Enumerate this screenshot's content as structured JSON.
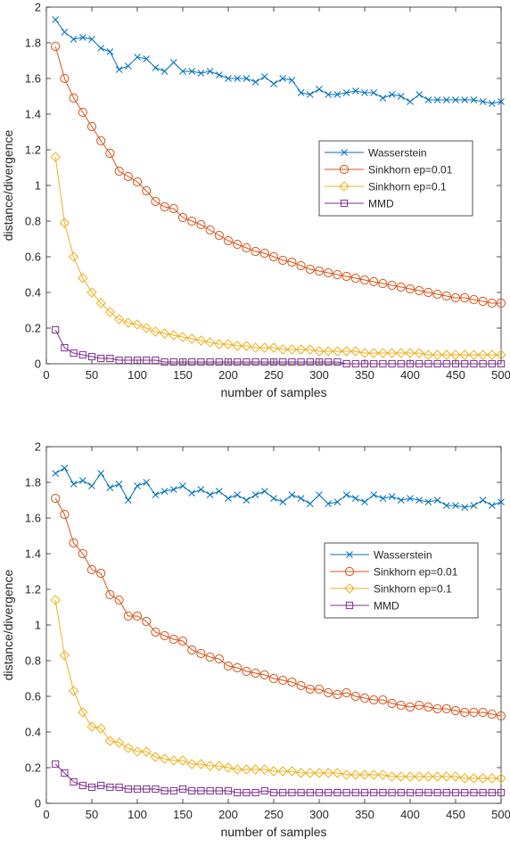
{
  "chart_data": [
    {
      "type": "line",
      "title": "",
      "xlabel": "number of samples",
      "ylabel": "distance/divergence",
      "xlim": [
        0,
        500
      ],
      "ylim": [
        0,
        2
      ],
      "xticks": [
        "0",
        "50",
        "100",
        "150",
        "200",
        "250",
        "300",
        "350",
        "400",
        "450",
        "500"
      ],
      "yticks": [
        "0",
        "0.2",
        "0.4",
        "0.6",
        "0.8",
        "1",
        "1.2",
        "1.4",
        "1.6",
        "1.8",
        "2"
      ],
      "legend_position": "right",
      "x": [
        10,
        20,
        30,
        40,
        50,
        60,
        70,
        80,
        90,
        100,
        110,
        120,
        130,
        140,
        150,
        160,
        170,
        180,
        190,
        200,
        210,
        220,
        230,
        240,
        250,
        260,
        270,
        280,
        290,
        300,
        310,
        320,
        330,
        340,
        350,
        360,
        370,
        380,
        390,
        400,
        410,
        420,
        430,
        440,
        450,
        460,
        470,
        480,
        490,
        500
      ],
      "series": [
        {
          "name": "Wasserstein",
          "color": "#0072BD",
          "marker": "x",
          "values": [
            1.93,
            1.86,
            1.82,
            1.83,
            1.82,
            1.77,
            1.75,
            1.65,
            1.67,
            1.72,
            1.71,
            1.66,
            1.64,
            1.69,
            1.64,
            1.64,
            1.63,
            1.64,
            1.62,
            1.6,
            1.6,
            1.6,
            1.58,
            1.61,
            1.57,
            1.6,
            1.59,
            1.52,
            1.51,
            1.54,
            1.51,
            1.51,
            1.52,
            1.53,
            1.52,
            1.52,
            1.49,
            1.51,
            1.5,
            1.47,
            1.51,
            1.48,
            1.48,
            1.48,
            1.48,
            1.48,
            1.48,
            1.47,
            1.46,
            1.47
          ]
        },
        {
          "name": "Sinkhorn ep=0.01",
          "color": "#D95319",
          "marker": "o",
          "values": [
            1.78,
            1.6,
            1.49,
            1.41,
            1.33,
            1.25,
            1.18,
            1.08,
            1.05,
            1.02,
            0.97,
            0.91,
            0.88,
            0.87,
            0.82,
            0.8,
            0.78,
            0.75,
            0.72,
            0.69,
            0.67,
            0.65,
            0.63,
            0.62,
            0.6,
            0.58,
            0.57,
            0.55,
            0.53,
            0.52,
            0.51,
            0.5,
            0.49,
            0.48,
            0.47,
            0.46,
            0.45,
            0.44,
            0.43,
            0.42,
            0.41,
            0.4,
            0.39,
            0.38,
            0.37,
            0.37,
            0.36,
            0.35,
            0.34,
            0.34
          ]
        },
        {
          "name": "Sinkhorn ep=0.1",
          "color": "#EDB120",
          "marker": "diamond",
          "values": [
            1.16,
            0.79,
            0.6,
            0.48,
            0.4,
            0.34,
            0.29,
            0.25,
            0.23,
            0.22,
            0.2,
            0.18,
            0.17,
            0.16,
            0.15,
            0.14,
            0.13,
            0.12,
            0.11,
            0.11,
            0.1,
            0.1,
            0.09,
            0.09,
            0.09,
            0.08,
            0.08,
            0.08,
            0.08,
            0.07,
            0.07,
            0.07,
            0.07,
            0.07,
            0.06,
            0.06,
            0.06,
            0.06,
            0.06,
            0.06,
            0.06,
            0.05,
            0.05,
            0.05,
            0.05,
            0.05,
            0.05,
            0.05,
            0.05,
            0.05
          ]
        },
        {
          "name": "MMD",
          "color": "#7E2F8E",
          "marker": "square",
          "values": [
            0.19,
            0.09,
            0.06,
            0.05,
            0.04,
            0.03,
            0.03,
            0.02,
            0.02,
            0.02,
            0.02,
            0.02,
            0.01,
            0.01,
            0.01,
            0.01,
            0.01,
            0.01,
            0.01,
            0.01,
            0.01,
            0.01,
            0.01,
            0.01,
            0.01,
            0.01,
            0.01,
            0.01,
            0.01,
            0.01,
            0.01,
            0.01,
            0.0,
            0.0,
            0.0,
            0.0,
            0.0,
            0.0,
            0.0,
            0.0,
            0.0,
            0.0,
            0.0,
            0.0,
            0.0,
            0.0,
            0.0,
            0.0,
            0.0,
            0.0
          ]
        }
      ]
    },
    {
      "type": "line",
      "title": "",
      "xlabel": "number of samples",
      "ylabel": "distance/divergence",
      "xlim": [
        0,
        500
      ],
      "ylim": [
        0,
        2
      ],
      "xticks": [
        "0",
        "50",
        "100",
        "150",
        "200",
        "250",
        "300",
        "350",
        "400",
        "450",
        "500"
      ],
      "yticks": [
        "0",
        "0.2",
        "0.4",
        "0.6",
        "0.8",
        "1",
        "1.2",
        "1.4",
        "1.6",
        "1.8",
        "2"
      ],
      "legend_position": "right",
      "x": [
        10,
        20,
        30,
        40,
        50,
        60,
        70,
        80,
        90,
        100,
        110,
        120,
        130,
        140,
        150,
        160,
        170,
        180,
        190,
        200,
        210,
        220,
        230,
        240,
        250,
        260,
        270,
        280,
        290,
        300,
        310,
        320,
        330,
        340,
        350,
        360,
        370,
        380,
        390,
        400,
        410,
        420,
        430,
        440,
        450,
        460,
        470,
        480,
        490,
        500
      ],
      "series": [
        {
          "name": "Wasserstein",
          "color": "#0072BD",
          "marker": "x",
          "values": [
            1.85,
            1.88,
            1.79,
            1.81,
            1.78,
            1.85,
            1.77,
            1.79,
            1.7,
            1.78,
            1.8,
            1.73,
            1.75,
            1.76,
            1.78,
            1.74,
            1.76,
            1.73,
            1.75,
            1.71,
            1.73,
            1.7,
            1.73,
            1.75,
            1.71,
            1.69,
            1.73,
            1.71,
            1.68,
            1.73,
            1.68,
            1.69,
            1.73,
            1.71,
            1.69,
            1.73,
            1.71,
            1.72,
            1.7,
            1.71,
            1.7,
            1.69,
            1.7,
            1.67,
            1.67,
            1.66,
            1.67,
            1.7,
            1.67,
            1.69
          ]
        },
        {
          "name": "Sinkhorn ep=0.01",
          "color": "#D95319",
          "marker": "o",
          "values": [
            1.71,
            1.62,
            1.46,
            1.4,
            1.31,
            1.29,
            1.17,
            1.14,
            1.05,
            1.05,
            1.02,
            0.96,
            0.94,
            0.92,
            0.91,
            0.86,
            0.84,
            0.82,
            0.81,
            0.77,
            0.76,
            0.74,
            0.73,
            0.72,
            0.7,
            0.69,
            0.68,
            0.66,
            0.64,
            0.64,
            0.62,
            0.61,
            0.62,
            0.6,
            0.59,
            0.58,
            0.58,
            0.56,
            0.55,
            0.54,
            0.55,
            0.54,
            0.53,
            0.53,
            0.52,
            0.51,
            0.51,
            0.51,
            0.5,
            0.49
          ]
        },
        {
          "name": "Sinkhorn ep=0.1",
          "color": "#EDB120",
          "marker": "diamond",
          "values": [
            1.14,
            0.83,
            0.63,
            0.51,
            0.43,
            0.42,
            0.35,
            0.34,
            0.31,
            0.29,
            0.29,
            0.26,
            0.25,
            0.24,
            0.24,
            0.22,
            0.22,
            0.21,
            0.21,
            0.2,
            0.19,
            0.19,
            0.19,
            0.19,
            0.18,
            0.18,
            0.18,
            0.17,
            0.17,
            0.17,
            0.17,
            0.17,
            0.16,
            0.16,
            0.16,
            0.16,
            0.16,
            0.15,
            0.15,
            0.15,
            0.15,
            0.15,
            0.15,
            0.15,
            0.15,
            0.14,
            0.14,
            0.14,
            0.14,
            0.14
          ]
        },
        {
          "name": "MMD",
          "color": "#7E2F8E",
          "marker": "square",
          "values": [
            0.22,
            0.17,
            0.12,
            0.1,
            0.09,
            0.1,
            0.09,
            0.09,
            0.08,
            0.08,
            0.08,
            0.08,
            0.07,
            0.07,
            0.08,
            0.07,
            0.07,
            0.07,
            0.07,
            0.07,
            0.06,
            0.06,
            0.06,
            0.07,
            0.06,
            0.06,
            0.06,
            0.06,
            0.06,
            0.06,
            0.06,
            0.06,
            0.06,
            0.06,
            0.06,
            0.06,
            0.06,
            0.06,
            0.06,
            0.06,
            0.06,
            0.06,
            0.06,
            0.06,
            0.06,
            0.06,
            0.06,
            0.06,
            0.06,
            0.06
          ]
        }
      ]
    }
  ]
}
